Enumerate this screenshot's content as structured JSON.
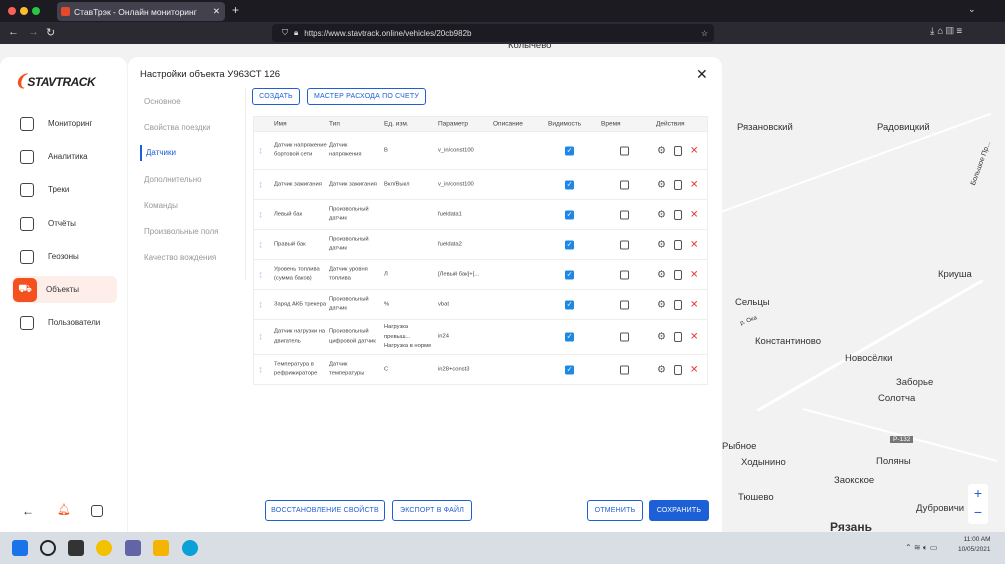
{
  "browser": {
    "tab_title": "СтавТрэк - Онлайн мониторинг",
    "url": "https://www.stavtrack.online/vehicles/20cb982b"
  },
  "sidebar": {
    "logo": "STAVTRACK",
    "items": [
      {
        "label": "Мониторинг",
        "icon": "monitor-icon"
      },
      {
        "label": "Аналитика",
        "icon": "pie-chart-icon"
      },
      {
        "label": "Треки",
        "icon": "route-icon"
      },
      {
        "label": "Отчёты",
        "icon": "report-icon"
      },
      {
        "label": "Геозоны",
        "icon": "geozone-icon"
      },
      {
        "label": "Объекты",
        "icon": "truck-icon",
        "active": true
      },
      {
        "label": "Пользователи",
        "icon": "users-icon"
      }
    ]
  },
  "modal": {
    "title": "Настройки объекта У963СТ 126",
    "tabs": [
      "Основное",
      "Свойства поездки",
      "Датчики",
      "Дополнительно",
      "Команды",
      "Произвольные поля",
      "Качество вождения"
    ],
    "active_tab": "Датчики",
    "create_label": "СОЗДАТЬ",
    "wizard_label": "МАСТЕР РАСХОДА ПО СЧЕТУ",
    "columns": [
      "Имя",
      "Тип",
      "Ед. изм.",
      "Параметр",
      "Описание",
      "Видимость",
      "Время",
      "Действия"
    ],
    "rows": [
      {
        "name": "Датчик напряжение бортовой сети",
        "type": "Датчик напряжения",
        "unit": "В",
        "param": "v_in/const100",
        "desc": "",
        "visible": true,
        "time": false
      },
      {
        "name": "Датчик зажигания",
        "type": "Датчик зажигания",
        "unit": "Вкл/Выкл",
        "param": "v_in/const100",
        "desc": "",
        "visible": true,
        "time": false
      },
      {
        "name": "Левый бак",
        "type": "Произвольный датчик",
        "unit": "",
        "param": "fueldata1",
        "desc": "",
        "visible": true,
        "time": false
      },
      {
        "name": "Правый бак",
        "type": "Произвольный датчик",
        "unit": "",
        "param": "fueldata2",
        "desc": "",
        "visible": true,
        "time": false
      },
      {
        "name": "Уровень топлива (сумма баков)",
        "type": "Датчик уровня топлива",
        "unit": "Л",
        "param": "[Левый бак]+[...",
        "desc": "",
        "visible": true,
        "time": false
      },
      {
        "name": "Заряд АКБ трекера",
        "type": "Произвольный датчик",
        "unit": "%",
        "param": "vbat",
        "desc": "",
        "visible": true,
        "time": false
      },
      {
        "name": "Датчик нагрузки на двигатель",
        "type": "Произвольный цифровой датчик",
        "unit": "Нагрузка превыш... Нагрузка в норме",
        "param": "in24",
        "desc": "",
        "visible": true,
        "time": false
      },
      {
        "name": "Температура в рефрижираторе",
        "type": "Датчик температуры",
        "unit": "С",
        "param": "in28+const3",
        "desc": "",
        "visible": true,
        "time": false
      }
    ],
    "restore_label": "ВОССТАНОВЛЕНИЕ СВОЙСТВ",
    "export_label": "ЭКСПОРТ В ФАЙЛ",
    "cancel_label": "ОТМЕНИТЬ",
    "save_label": "СОХРАНИТЬ"
  },
  "map": {
    "labels": [
      "Колычево",
      "Рязановский",
      "Радовицкий",
      "Большое Пр...",
      "Криуша",
      "Сельцы",
      "р. Ока",
      "Константиново",
      "Новосёлки",
      "Заборье",
      "Солотча",
      "Р-132",
      "Рыбное",
      "Поляны",
      "Ходынино",
      "Заокское",
      "Тюшево",
      "Дубровичи",
      "Рязань"
    ]
  },
  "taskbar": {
    "time": "11:00 AM",
    "date": "10/05/2021"
  },
  "colors": {
    "accent": "#1d5fd6",
    "brand": "#f4511e",
    "check": "#1e88e5",
    "delete": "#e53935"
  }
}
